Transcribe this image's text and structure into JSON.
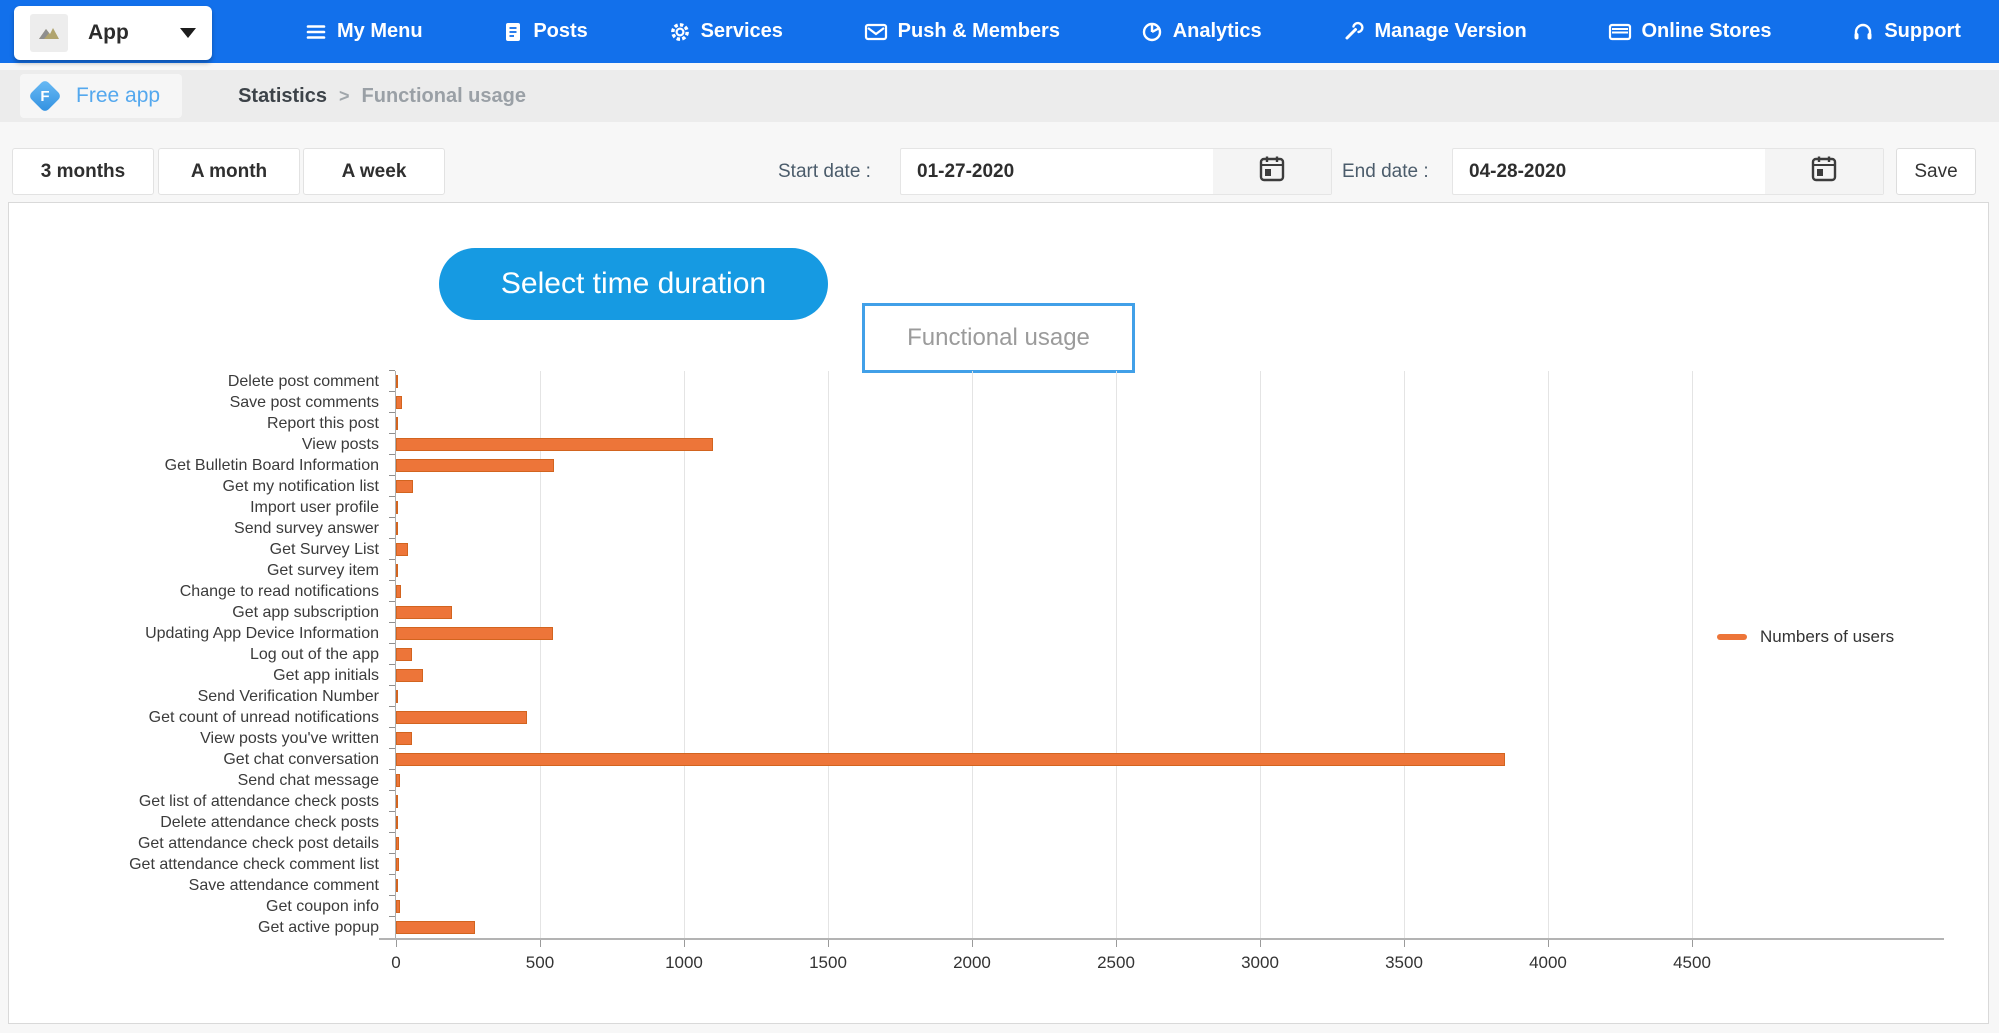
{
  "navbar": {
    "app_selector": {
      "label": "App"
    },
    "items": [
      {
        "label": "My Menu",
        "icon": "menu-icon"
      },
      {
        "label": "Posts",
        "icon": "document-icon"
      },
      {
        "label": "Services",
        "icon": "gear-icon"
      },
      {
        "label": "Push & Members",
        "icon": "envelope-icon"
      },
      {
        "label": "Analytics",
        "icon": "pie-chart-icon"
      },
      {
        "label": "Manage Version",
        "icon": "wrench-icon"
      },
      {
        "label": "Online Stores",
        "icon": "store-icon"
      },
      {
        "label": "Support",
        "icon": "headset-icon"
      }
    ]
  },
  "breadcrumb": {
    "app_badge_letter": "F",
    "app_name": "Free app",
    "section": "Statistics",
    "separator": ">",
    "page": "Functional usage"
  },
  "filters": {
    "range_buttons": [
      "3 months",
      "A month",
      "A week"
    ],
    "start_date_label": "Start date :",
    "start_date_value": "01-27-2020",
    "end_date_label": "End date :",
    "end_date_value": "04-28-2020",
    "save_label": "Save"
  },
  "tooltip": {
    "text": "Select time duration"
  },
  "colors": {
    "navbar_blue": "#1270eb",
    "tooltip_blue": "#169ae2",
    "title_box_border_blue": "#41a0e8",
    "bar_orange": "#ed7539",
    "breadcrumb_link_blue": "#54a8ee"
  },
  "chart_data": {
    "type": "bar",
    "orientation": "horizontal",
    "title": "Functional usage",
    "xlabel": "",
    "ylabel": "",
    "xlim": [
      0,
      4500
    ],
    "x_ticks": [
      0,
      500,
      1000,
      1500,
      2000,
      2500,
      3000,
      3500,
      4000,
      4500
    ],
    "grid": true,
    "legend_position": "right",
    "legend": [
      {
        "name": "Numbers of users",
        "color": "#ed7539"
      }
    ],
    "categories": [
      "Delete post comment",
      "Save post comments",
      "Report this post",
      "View posts",
      "Get Bulletin Board Information",
      "Get my notification list",
      "Import user profile",
      "Send survey answer",
      "Get Survey List",
      "Get survey item",
      "Change to read notifications",
      "Get app subscription",
      "Updating App Device Information",
      "Log out of the app",
      "Get app initials",
      "Send Verification Number",
      "Get count of unread notifications",
      "View posts you've written",
      "Get chat conversation",
      "Send chat message",
      "Get list of attendance check posts",
      "Delete attendance check posts",
      "Get attendance check post details",
      "Get attendance check comment list",
      "Save attendance comment",
      "Get coupon info",
      "Get active popup"
    ],
    "values": [
      6,
      20,
      4,
      1100,
      550,
      60,
      8,
      6,
      42,
      7,
      18,
      195,
      545,
      55,
      95,
      5,
      455,
      55,
      3855,
      15,
      6,
      3,
      12,
      10,
      5,
      15,
      275
    ]
  }
}
